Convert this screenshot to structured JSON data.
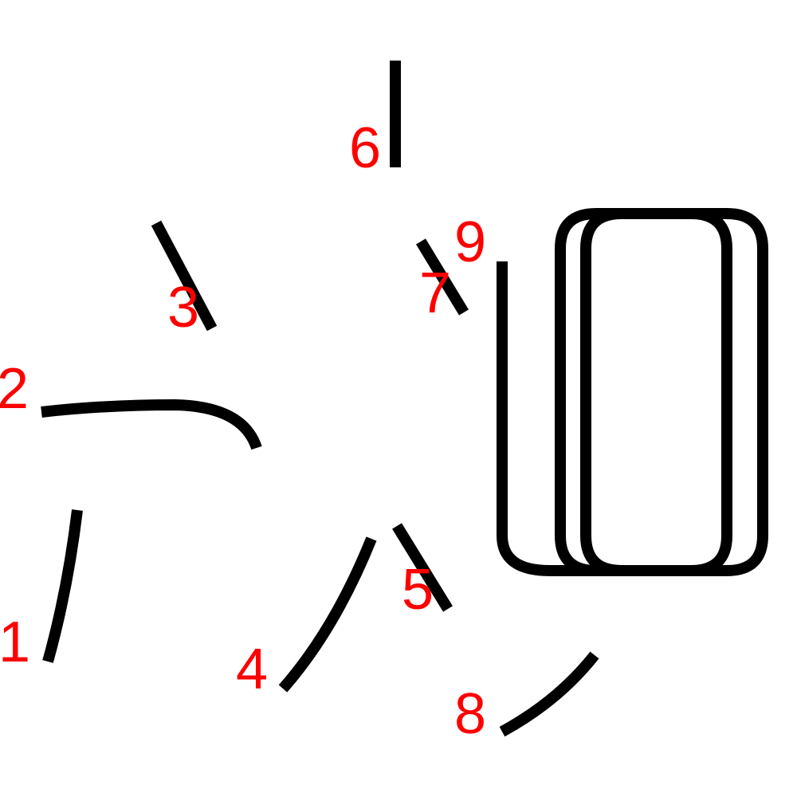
{
  "diagram": {
    "stroke_color": "#000000",
    "label_color": "#ff0000",
    "stroke_order": [
      {
        "number": "1"
      },
      {
        "number": "2"
      },
      {
        "number": "3"
      },
      {
        "number": "4"
      },
      {
        "number": "5"
      },
      {
        "number": "6"
      },
      {
        "number": "7"
      },
      {
        "number": "8"
      },
      {
        "number": "9"
      }
    ]
  }
}
